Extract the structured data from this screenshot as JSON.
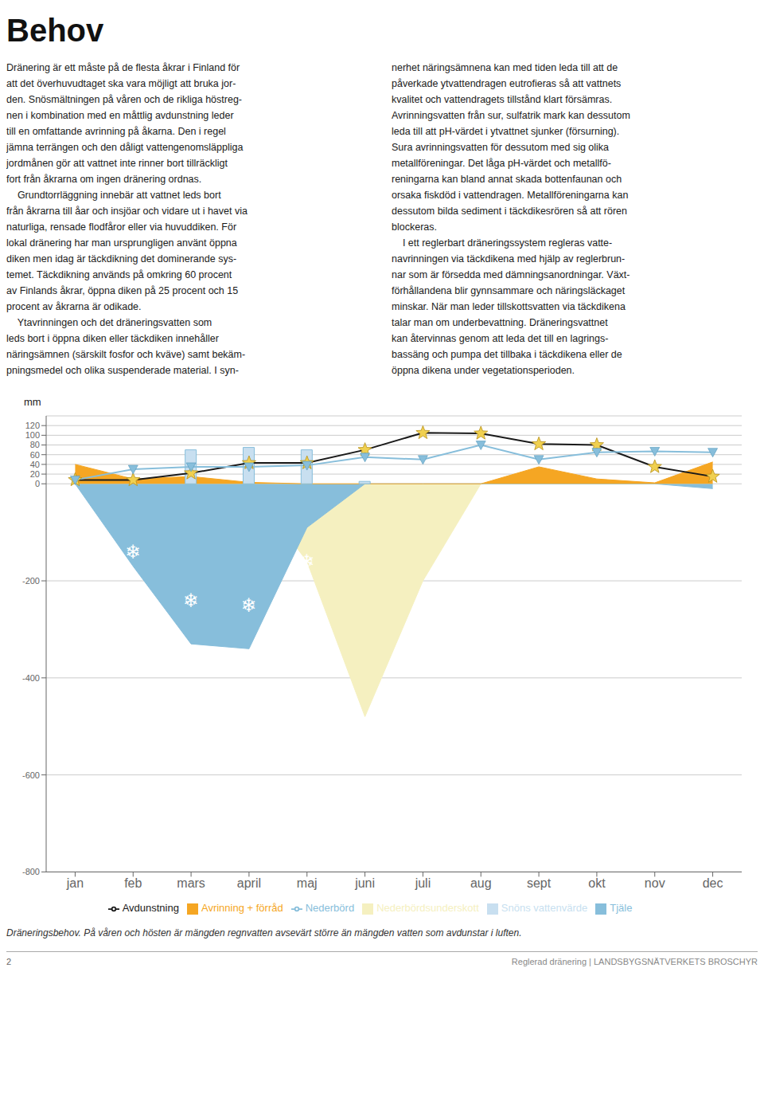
{
  "chart_data": {
    "type": "area",
    "title": "Behov",
    "ylabel": "mm",
    "categories": [
      "jan",
      "feb",
      "mars",
      "april",
      "maj",
      "juni",
      "juli",
      "aug",
      "sept",
      "okt",
      "nov",
      "dec"
    ],
    "ylim": [
      -800,
      140
    ],
    "yticks": [
      -800,
      -600,
      -400,
      -200,
      0,
      20,
      40,
      60,
      80,
      100,
      120
    ],
    "grid": true,
    "legend": "bottom",
    "series": [
      {
        "name": "Nederbördsunderskott",
        "type": "area",
        "color": "#F5F0C0",
        "values": [
          0,
          0,
          0,
          0,
          -160,
          -480,
          -200,
          0,
          0,
          0,
          0,
          0
        ]
      },
      {
        "name": "Tjäle",
        "type": "area",
        "color": "#87BEDB",
        "values": [
          0,
          -170,
          -330,
          -340,
          -90,
          0,
          0,
          0,
          0,
          0,
          0,
          -10
        ]
      },
      {
        "name": "Avrinning + förråd",
        "type": "area",
        "color": "#F5A623",
        "values": [
          40,
          10,
          15,
          3,
          0,
          0,
          0,
          0,
          35,
          10,
          2,
          45
        ]
      },
      {
        "name": "Snöns vattenvärde",
        "type": "bar",
        "color": "#C8DFF0",
        "values": [
          0,
          0,
          70,
          75,
          70,
          5,
          0,
          0,
          0,
          0,
          0,
          0
        ]
      },
      {
        "name": "Avdunstning",
        "type": "line",
        "color": "#1a1a1a",
        "marker": "star",
        "values": [
          8,
          8,
          22,
          43,
          43,
          70,
          105,
          104,
          82,
          80,
          35,
          15
        ]
      },
      {
        "name": "Nederbörd",
        "type": "line",
        "color": "#87BEDB",
        "marker": "triangle_down",
        "values": [
          8,
          30,
          35,
          35,
          38,
          55,
          50,
          80,
          50,
          65,
          67,
          65
        ]
      }
    ],
    "annotations": [
      {
        "x": "feb",
        "y": -140,
        "text": "❄"
      },
      {
        "x": "mars",
        "y": -240,
        "text": "❄"
      },
      {
        "x": "april",
        "y": -250,
        "text": "❄"
      },
      {
        "x": "maj",
        "y": -160,
        "text": "❄"
      }
    ],
    "body_text": [
      "Dränering är ett måste på de flesta åkrar i Finland för\natt det överhuvudtaget ska vara möjligt att bruka jor-\nden. Snösmältningen på våren och de rikliga höstreg-\nnen i kombination med en måttlig avdunstning leder\ntill en omfattande avrinning på åkarna. Den i regel\njämna terrängen och den dåligt vattengenomsläppliga\njordmånen gör att vattnet inte rinner bort tillräckligt\nfort från åkrarna om ingen dränering ordnas.\n    Grundtorrläggning innebär att vattnet leds bort\nfrån åkrarna till åar och insjöar och vidare ut i havet via\nnaturliga, rensade flodfåror eller via huvuddiken. För\nlokal dränering har man ursprungligen använt öppna\ndiken men idag är täckdikning det dominerande sys-\ntemet. Täckdikning används på omkring 60 procent\nav Finlands åkrar, öppna diken på 25 procent och 15\nprocent av åkrarna är odikade.\n    Ytavrinningen och det dräneringsvatten som\nleds bort i öppna diken eller täckdiken innehåller\nnäringsämnen (särskilt fosfor och kväve) samt bekäm-\npningsmedel och olika suspenderade material. I syn-",
      "nerhet näringsämnena kan med tiden leda till att de\npåverkade ytvattendragen eutrofieras så att vattnets\nkvalitet och vattendragets tillstånd klart försämras.\nAvrinningsvatten från sur, sulfatrik mark kan dessutom\nleda till att pH-värdet i ytvattnet sjunker (försurning).\nSura avrinningsvatten för dessutom med sig olika\nmetallföreningar. Det låga pH-värdet och metallfö-\nreningarna kan bland annat skada bottenfaunan och\norsaka fiskdöd i vattendragen. Metallföreningarna kan\ndessutom bilda sediment i täckdikesrören så att rören\nblockeras.\n    I ett reglerbart dräneringssystem regleras vatte-\nnavrinningen via täckdikena med hjälp av reglerbrun-\nnar som är försedda med dämningsanordningar. Växt-\nförhållandena blir gynnsammare och näringsläckaget\nminskar. När man leder tillskottsvatten via täckdikena\ntalar man om underbevattning. Dräneringsvattnet\nkan återvinnas genom att leda det till en lagrings-\nbassäng och pumpa det tillbaka i täckdikena eller de\nöppna dikena under vegetationsperioden."
    ],
    "caption": "Dräneringsbehov. På våren och hösten är mängden regnvatten avsevärt större än mängden vatten som avdunstar i luften.",
    "footer": [
      "2",
      "Reglerad dränering | LANDSBYGSNÄTVERKETS BROSCHYR"
    ]
  }
}
